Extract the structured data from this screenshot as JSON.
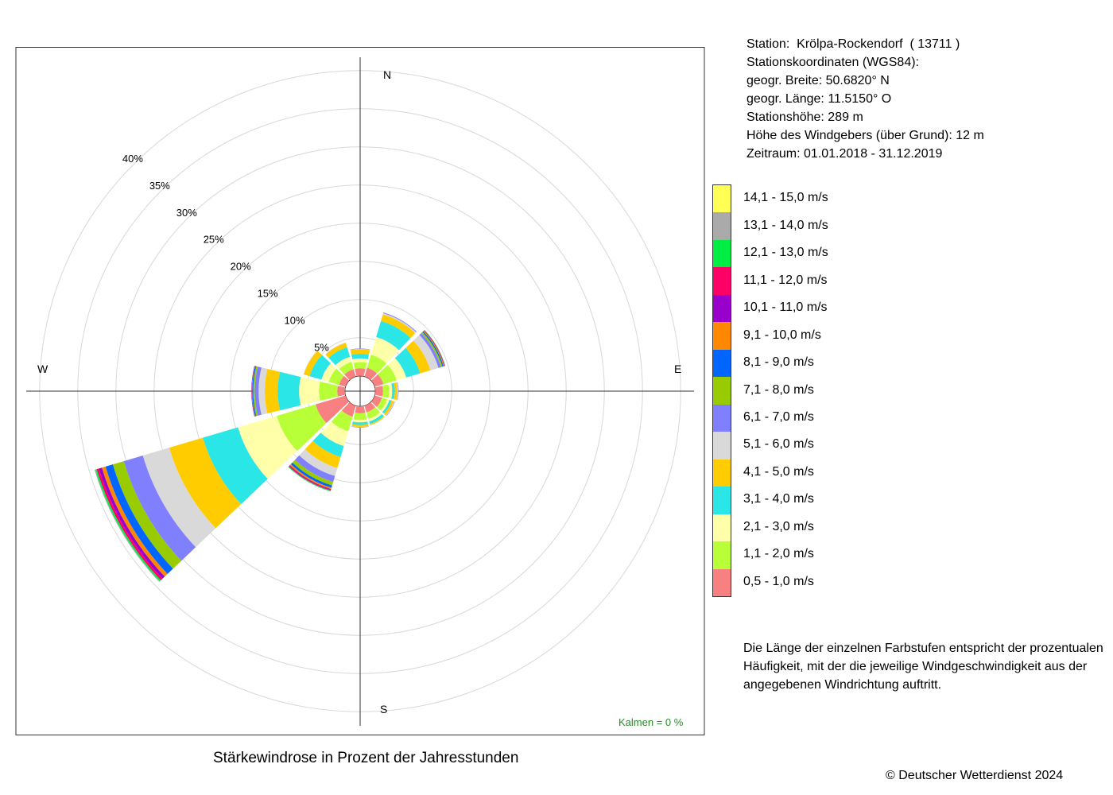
{
  "station_info": [
    "Station:  Krölpa-Rockendorf  ( 13711 )",
    "Stationskoordinaten (WGS84):",
    "geogr. Breite: 50.6820° N",
    "geogr. Länge: 11.5150° O",
    "Stationshöhe: 289 m",
    "Höhe des Windgebers (über Grund): 12 m",
    "Zeitraum: 01.01.2018 - 31.12.2019"
  ],
  "calm_label": "Kalmen  =  0 %",
  "caption": "Stärkewindrose in Prozent der Jahresstunden",
  "note": "Die Länge der einzelnen Farbstufen entspricht der prozentualen Häufigkeit, mit der die jeweilige Windgeschwindigkeit aus der angegebenen Windrichtung auftritt.",
  "copyright": "© Deutscher Wetterdienst  2024",
  "chart_data": {
    "type": "wind-rose",
    "title": "Stärkewindrose in Prozent der Jahresstunden",
    "unit": "%",
    "radial_ticks": [
      5,
      10,
      15,
      20,
      25,
      30,
      35,
      40
    ],
    "radial_tick_labels": [
      "5%",
      "10%",
      "15%",
      "20%",
      "25%",
      "30%",
      "35%",
      "40%"
    ],
    "radial_max": 40,
    "center_offset_percent": 2,
    "compass_labels": [
      "N",
      "E",
      "S",
      "W"
    ],
    "directions_deg": [
      0,
      30,
      60,
      90,
      120,
      150,
      180,
      210,
      240,
      270,
      300,
      330
    ],
    "speed_classes": [
      {
        "label": "0,5 - 1,0 m/s",
        "color": "#F88080"
      },
      {
        "label": "1,1 - 2,0 m/s",
        "color": "#B8FF38"
      },
      {
        "label": "2,1 - 3,0 m/s",
        "color": "#FFFFAA"
      },
      {
        "label": "3,1 - 4,0 m/s",
        "color": "#2AE6E6"
      },
      {
        "label": "4,1 - 5,0 m/s",
        "color": "#FFCC00"
      },
      {
        "label": "5,1 - 6,0 m/s",
        "color": "#D9D9D9"
      },
      {
        "label": "6,1 - 7,0 m/s",
        "color": "#8080FF"
      },
      {
        "label": "7,1 - 8,0 m/s",
        "color": "#99CC00"
      },
      {
        "label": "8,1 - 9,0 m/s",
        "color": "#0066FF"
      },
      {
        "label": "9,1 - 10,0 m/s",
        "color": "#FF8800"
      },
      {
        "label": "10,1 - 11,0 m/s",
        "color": "#9900CC"
      },
      {
        "label": "11,1 - 12,0 m/s",
        "color": "#FF0066"
      },
      {
        "label": "12,1 - 13,0 m/s",
        "color": "#00EE44"
      },
      {
        "label": "13,1 - 14,0 m/s",
        "color": "#AAAAAA"
      },
      {
        "label": "14,1 - 15,0 m/s",
        "color": "#FFFF55"
      }
    ],
    "values": [
      [
        1.0,
        0.8,
        0.5,
        0.6,
        0.6,
        0.05,
        0.05,
        0,
        0,
        0,
        0,
        0,
        0,
        0,
        0
      ],
      [
        1.2,
        1.8,
        2.4,
        2.2,
        0.9,
        0.15,
        0.1,
        0,
        0,
        0,
        0,
        0,
        0,
        0,
        0
      ],
      [
        1.2,
        1.8,
        1.3,
        1.9,
        1.4,
        1.1,
        0.35,
        0.2,
        0.15,
        0.1,
        0.05,
        0.05,
        0.05,
        0,
        0
      ],
      [
        1.0,
        0.8,
        0.4,
        0.35,
        0.35,
        0.1,
        0.05,
        0,
        0,
        0,
        0,
        0,
        0,
        0,
        0
      ],
      [
        1.0,
        0.7,
        0.3,
        0.3,
        0.3,
        0.1,
        0.05,
        0,
        0,
        0,
        0,
        0,
        0,
        0,
        0
      ],
      [
        0.9,
        0.9,
        0.35,
        0.35,
        0.15,
        0.05,
        0,
        0,
        0,
        0,
        0,
        0,
        0,
        0,
        0
      ],
      [
        0.9,
        0.9,
        0.3,
        0.35,
        0.25,
        0.05,
        0.05,
        0,
        0,
        0,
        0,
        0,
        0,
        0,
        0
      ],
      [
        1.5,
        2.0,
        2.0,
        1.5,
        1.5,
        1.1,
        0.8,
        0.5,
        0.3,
        0.2,
        0.1,
        0.1,
        0.1,
        0,
        0
      ],
      [
        4.1,
        5.3,
        5.3,
        4.8,
        4.6,
        3.6,
        2.6,
        1.5,
        1.0,
        0.5,
        0.4,
        0.3,
        0.2,
        0.1,
        0
      ],
      [
        1.0,
        2.4,
        2.6,
        2.8,
        1.7,
        0.8,
        0.5,
        0.2,
        0.15,
        0.05,
        0.05,
        0,
        0,
        0,
        0
      ],
      [
        0.9,
        1.4,
        1.0,
        1.6,
        0.8,
        0.05,
        0,
        0,
        0,
        0,
        0,
        0,
        0,
        0,
        0
      ],
      [
        1.0,
        1.0,
        0.7,
        1.3,
        0.6,
        0.05,
        0,
        0,
        0,
        0,
        0,
        0,
        0,
        0,
        0
      ]
    ]
  }
}
